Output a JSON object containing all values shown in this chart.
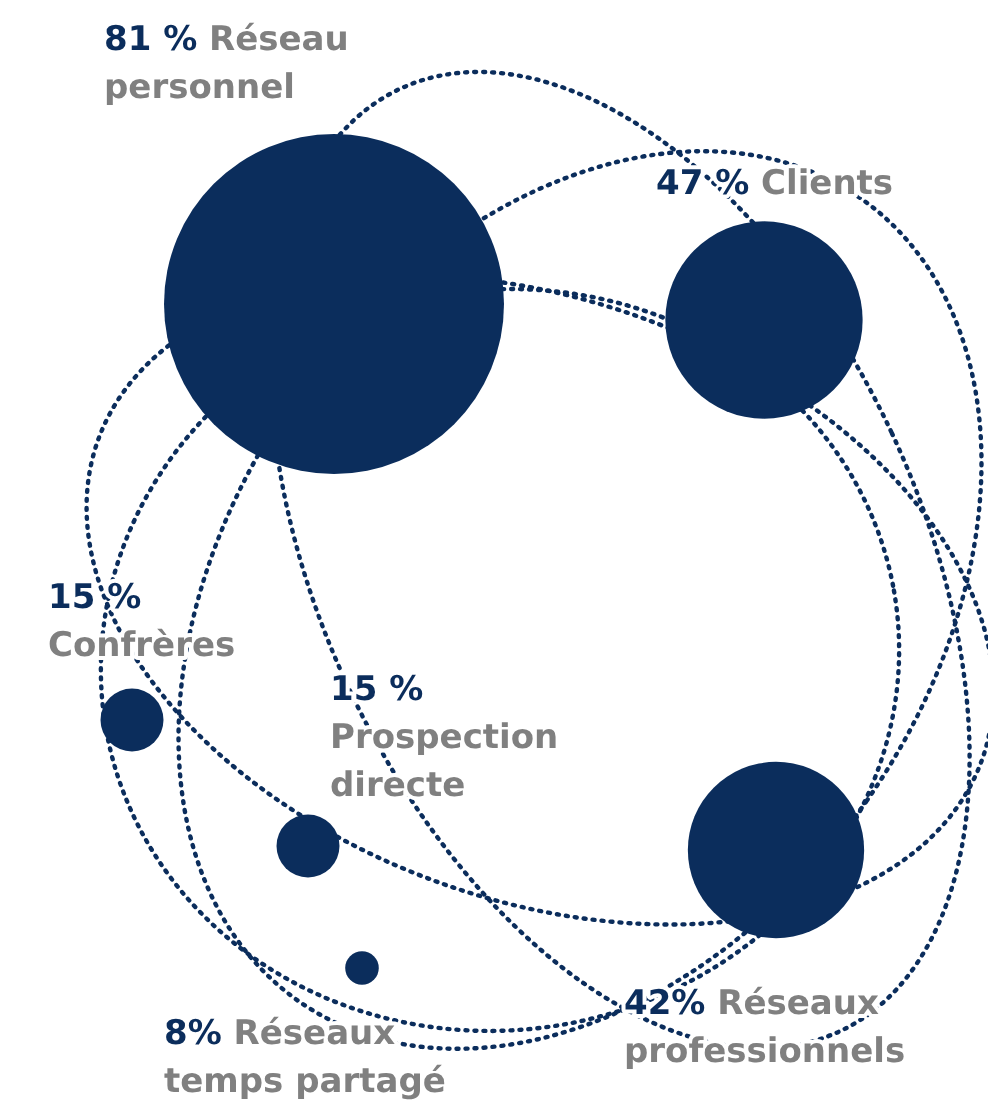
{
  "chart_data": {
    "type": "other",
    "categories": [
      "Réseau personnel",
      "Clients",
      "Réseaux professionnels",
      "Confrères",
      "Prospection directe",
      "Réseaux temps partagé"
    ],
    "values": [
      81,
      47,
      42,
      15,
      15,
      8
    ],
    "value_labels": [
      "81 %",
      "47 %",
      "42%",
      "15 %",
      "15 %",
      "8%"
    ],
    "color": "#0b2d5c"
  }
}
